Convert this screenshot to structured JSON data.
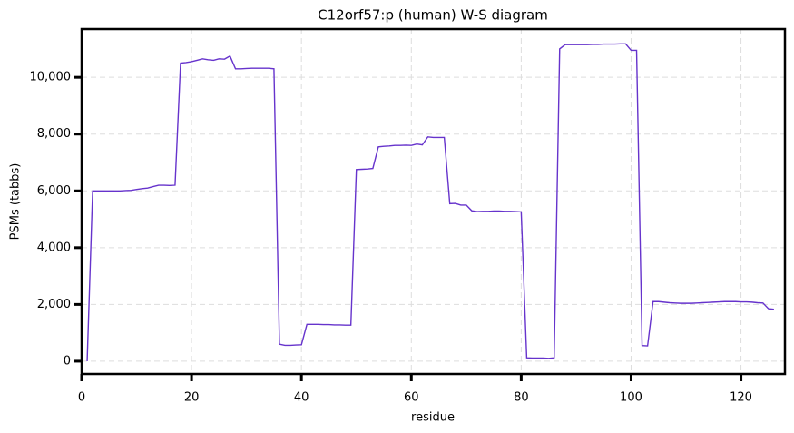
{
  "chart_data": {
    "type": "line",
    "title": "C12orf57:p (human) W-S diagram",
    "xlabel": "residue",
    "ylabel": "PSMs (tabbs)",
    "x": [
      1,
      2,
      3,
      4,
      5,
      6,
      7,
      8,
      9,
      10,
      11,
      12,
      13,
      14,
      15,
      16,
      17,
      18,
      19,
      20,
      21,
      22,
      23,
      24,
      25,
      26,
      27,
      28,
      29,
      30,
      31,
      32,
      33,
      34,
      35,
      36,
      37,
      38,
      39,
      40,
      41,
      42,
      43,
      44,
      45,
      46,
      47,
      48,
      49,
      50,
      51,
      52,
      53,
      54,
      55,
      56,
      57,
      58,
      59,
      60,
      61,
      62,
      63,
      64,
      65,
      66,
      67,
      68,
      69,
      70,
      71,
      72,
      73,
      74,
      75,
      76,
      77,
      78,
      79,
      80,
      81,
      82,
      83,
      84,
      85,
      86,
      87,
      88,
      89,
      90,
      91,
      92,
      93,
      94,
      95,
      96,
      97,
      98,
      99,
      100,
      101,
      102,
      103,
      104,
      105,
      106,
      107,
      108,
      109,
      110,
      111,
      112,
      113,
      114,
      115,
      116,
      117,
      118,
      119,
      120,
      121,
      122,
      123,
      124,
      125,
      126
    ],
    "series": [
      {
        "color": "#6633cc",
        "values": [
          0,
          6000,
          6000,
          6000,
          6000,
          6000,
          6000,
          6010,
          6020,
          6050,
          6080,
          6100,
          6150,
          6200,
          6200,
          6190,
          6200,
          10500,
          10520,
          10550,
          10600,
          10650,
          10620,
          10600,
          10650,
          10640,
          10750,
          10300,
          10300,
          10310,
          10320,
          10320,
          10320,
          10320,
          10300,
          600,
          560,
          560,
          570,
          580,
          1300,
          1300,
          1300,
          1290,
          1290,
          1280,
          1280,
          1270,
          1270,
          6750,
          6760,
          6770,
          6790,
          7550,
          7570,
          7580,
          7600,
          7600,
          7610,
          7600,
          7650,
          7620,
          7900,
          7880,
          7880,
          7880,
          5550,
          5560,
          5500,
          5500,
          5300,
          5270,
          5280,
          5280,
          5290,
          5290,
          5280,
          5280,
          5270,
          5260,
          120,
          110,
          110,
          110,
          100,
          120,
          11000,
          11150,
          11150,
          11150,
          11150,
          11150,
          11160,
          11160,
          11170,
          11170,
          11170,
          11180,
          11180,
          10950,
          10950,
          550,
          540,
          2100,
          2100,
          2080,
          2060,
          2050,
          2040,
          2040,
          2040,
          2050,
          2060,
          2070,
          2080,
          2090,
          2100,
          2100,
          2100,
          2090,
          2090,
          2080,
          2060,
          2050,
          1850,
          1830
        ]
      }
    ],
    "xlim": [
      0,
      128
    ],
    "xticks": [
      0,
      20,
      40,
      60,
      80,
      100,
      120
    ],
    "ylim": [
      -450,
      11700
    ],
    "yticks": [
      0,
      {
        "value": 2000,
        "label": "2,000"
      },
      {
        "value": 4000,
        "label": "4,000"
      },
      {
        "value": 6000,
        "label": "6,000"
      },
      {
        "value": 8000,
        "label": "8,000"
      },
      {
        "value": 10000,
        "label": "10,000"
      }
    ],
    "grid": true
  }
}
